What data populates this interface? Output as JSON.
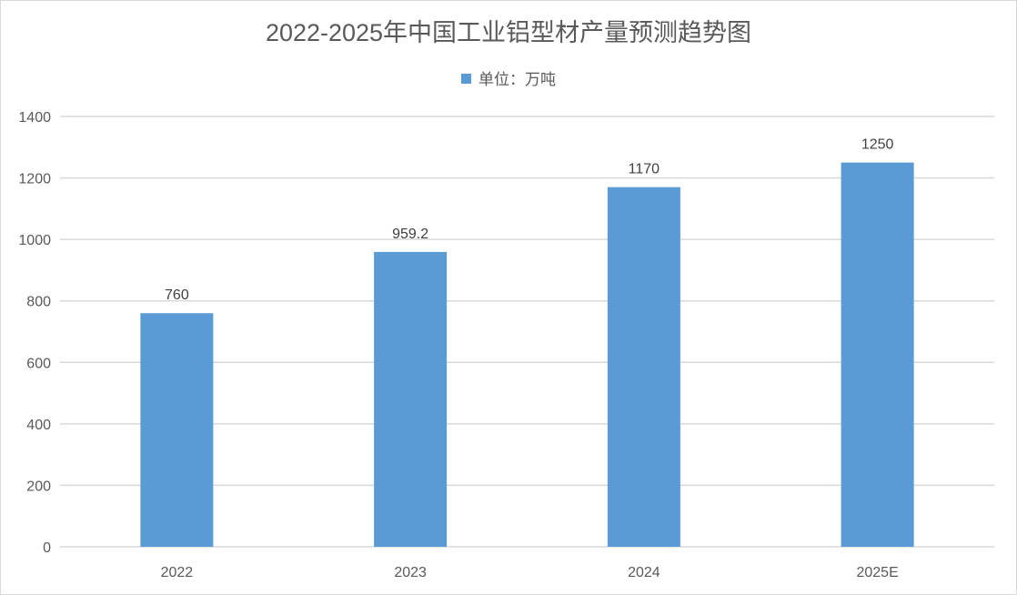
{
  "chart_data": {
    "type": "bar",
    "title": "2022-2025年中国工业铝型材产量预测趋势图",
    "categories": [
      "2022",
      "2023",
      "2024",
      "2025E"
    ],
    "series": [
      {
        "name": "单位：万吨",
        "values": [
          760,
          959.2,
          1170,
          1250
        ],
        "color": "#5b9bd5"
      }
    ],
    "data_labels": [
      "760",
      "959.2",
      "1170",
      "1250"
    ],
    "xlabel": "",
    "ylabel": "",
    "ylim": [
      0,
      1400
    ],
    "yticks": [
      0,
      200,
      400,
      600,
      800,
      1000,
      1200,
      1400
    ],
    "grid": true,
    "legend_position": "top"
  },
  "colors": {
    "bar": "#5b9bd5",
    "grid": "#d9d9d9",
    "text": "#595959",
    "label": "#404040"
  }
}
